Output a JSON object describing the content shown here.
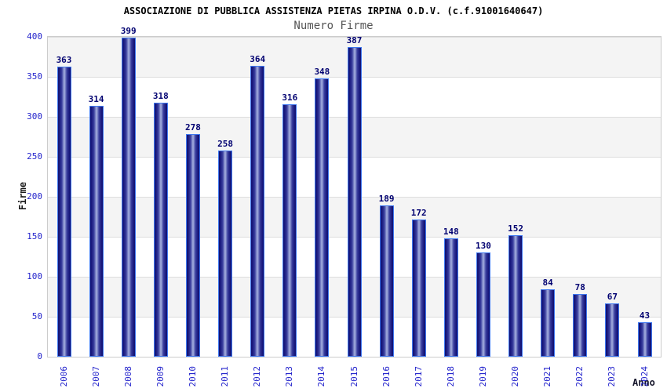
{
  "chart_data": {
    "type": "bar",
    "title": "ASSOCIAZIONE DI PUBBLICA ASSISTENZA PIETAS IRPINA O.D.V. (c.f.91001640647)",
    "subtitle": "Numero Firme",
    "xlabel": "Anno",
    "ylabel": "Firme",
    "categories": [
      "2006",
      "2007",
      "2008",
      "2009",
      "2010",
      "2011",
      "2012",
      "2013",
      "2014",
      "2015",
      "2016",
      "2017",
      "2018",
      "2019",
      "2020",
      "2021",
      "2022",
      "2023",
      "2024"
    ],
    "values": [
      363,
      314,
      399,
      318,
      278,
      258,
      364,
      316,
      348,
      387,
      189,
      172,
      148,
      130,
      152,
      84,
      78,
      67,
      43
    ],
    "ylim": [
      0,
      400
    ],
    "yticks": [
      0,
      50,
      100,
      150,
      200,
      250,
      300,
      350,
      400
    ],
    "grid": true,
    "legend_position": "none",
    "value_labels_shown": true,
    "colors": {
      "bar_border": "#4079f0",
      "bar_edge_dark": "#101070",
      "bar_center_light": "#a7afdf",
      "axis_tick_label": "#2424cc",
      "value_label": "#000070",
      "title_text": "#000000",
      "subtitle_text": "#555555",
      "band_gray": "#f4f4f4",
      "band_white": "#ffffff",
      "gridline": "#dddddd",
      "plot_border": "#cccccc"
    }
  }
}
